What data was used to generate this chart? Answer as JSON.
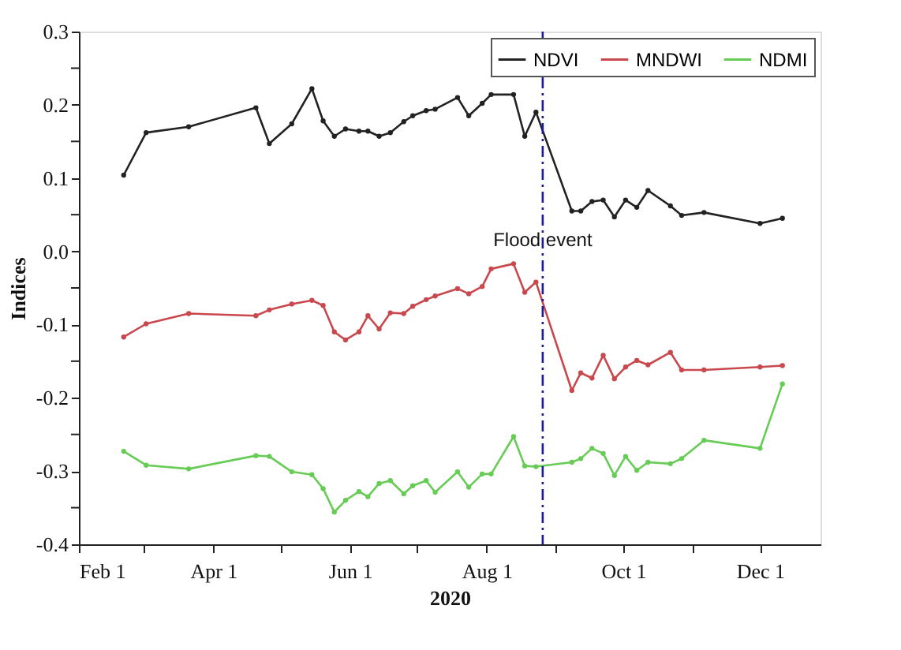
{
  "chart_data": {
    "type": "line",
    "xlabel": "2020",
    "ylabel": "Indices",
    "x": [
      "2020-02-21",
      "2020-03-02",
      "2020-03-21",
      "2020-04-20",
      "2020-04-26",
      "2020-05-06",
      "2020-05-15",
      "2020-05-20",
      "2020-05-25",
      "2020-05-30",
      "2020-06-05",
      "2020-06-09",
      "2020-06-14",
      "2020-06-19",
      "2020-06-25",
      "2020-06-29",
      "2020-07-05",
      "2020-07-09",
      "2020-07-19",
      "2020-07-24",
      "2020-07-30",
      "2020-08-03",
      "2020-08-13",
      "2020-08-18",
      "2020-08-23",
      "2020-09-08",
      "2020-09-12",
      "2020-09-17",
      "2020-09-22",
      "2020-09-27",
      "2020-10-02",
      "2020-10-07",
      "2020-10-12",
      "2020-10-22",
      "2020-10-27",
      "2020-11-06",
      "2020-12-01",
      "2020-12-11"
    ],
    "series": [
      {
        "name": "NDVI",
        "color": "#222222",
        "values": [
          0.104,
          0.162,
          0.17,
          0.196,
          0.147,
          0.174,
          0.222,
          0.178,
          0.157,
          0.167,
          0.164,
          0.164,
          0.157,
          0.162,
          0.177,
          0.185,
          0.192,
          0.194,
          0.21,
          0.185,
          0.202,
          0.214,
          0.214,
          0.157,
          0.19,
          0.055,
          0.055,
          0.068,
          0.07,
          0.047,
          0.07,
          0.06,
          0.083,
          0.062,
          0.049,
          0.053,
          0.038,
          0.045
        ]
      },
      {
        "name": "MNDWI",
        "color": "#c8484e",
        "values": [
          -0.117,
          -0.099,
          -0.085,
          -0.088,
          -0.08,
          -0.072,
          -0.067,
          -0.074,
          -0.11,
          -0.121,
          -0.11,
          -0.088,
          -0.106,
          -0.084,
          -0.085,
          -0.075,
          -0.066,
          -0.061,
          -0.051,
          -0.058,
          -0.048,
          -0.024,
          -0.017,
          -0.056,
          -0.042,
          -0.19,
          -0.166,
          -0.173,
          -0.142,
          -0.174,
          -0.158,
          -0.149,
          -0.155,
          -0.138,
          -0.162,
          -0.162,
          -0.158,
          -0.156
        ]
      },
      {
        "name": "NDMI",
        "color": "#66cc55",
        "values": [
          -0.273,
          -0.292,
          -0.297,
          -0.279,
          -0.28,
          -0.301,
          -0.305,
          -0.324,
          -0.356,
          -0.34,
          -0.328,
          -0.335,
          -0.317,
          -0.313,
          -0.331,
          -0.32,
          -0.313,
          -0.329,
          -0.301,
          -0.322,
          -0.304,
          -0.304,
          -0.253,
          -0.293,
          -0.294,
          -0.288,
          -0.283,
          -0.269,
          -0.276,
          -0.306,
          -0.28,
          -0.299,
          -0.288,
          -0.29,
          -0.283,
          -0.258,
          -0.269,
          -0.181
        ]
      }
    ],
    "xlim": [
      "2020-02-01",
      "2020-12-28"
    ],
    "xticks": [
      {
        "value": "2020-02-01",
        "label": "Feb 1"
      },
      {
        "value": "2020-03-01",
        "label": null
      },
      {
        "value": "2020-04-01",
        "label": "Apr 1"
      },
      {
        "value": "2020-05-01",
        "label": null
      },
      {
        "value": "2020-06-01",
        "label": "Jun 1"
      },
      {
        "value": "2020-07-01",
        "label": null
      },
      {
        "value": "2020-08-01",
        "label": "Aug 1"
      },
      {
        "value": "2020-09-01",
        "label": null
      },
      {
        "value": "2020-10-01",
        "label": "Oct 1"
      },
      {
        "value": "2020-11-01",
        "label": null
      },
      {
        "value": "2020-12-01",
        "label": "Dec 1"
      }
    ],
    "ylim": [
      -0.4,
      0.3
    ],
    "yticks": [
      -0.4,
      {
        "value": -0.35,
        "label": null
      },
      -0.3,
      {
        "value": -0.25,
        "label": null
      },
      -0.2,
      {
        "value": -0.15,
        "label": null
      },
      -0.1,
      {
        "value": -0.05,
        "label": null
      },
      {
        "value": 0,
        "label": "0.0"
      },
      {
        "value": 0.05,
        "label": null
      },
      0.1,
      {
        "value": 0.15,
        "label": null
      },
      0.2,
      {
        "value": 0.25,
        "label": null
      },
      0.3
    ],
    "ref_lines": [
      {
        "axis": "x",
        "value": "2020-08-26",
        "label": "Flood event",
        "color": "#1a1aa0",
        "line_style": "dashed"
      }
    ],
    "legend": "top right",
    "marker": "circle",
    "line_style": "solid",
    "grid": false
  }
}
